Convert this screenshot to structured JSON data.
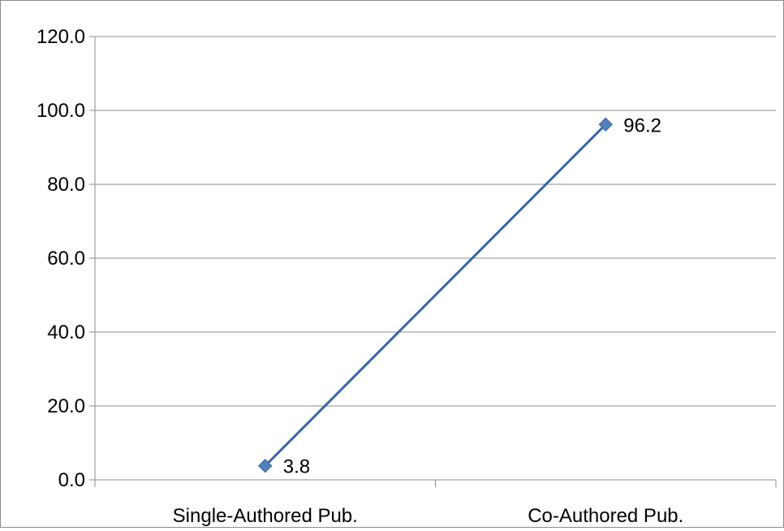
{
  "chart_data": {
    "type": "line",
    "title": "",
    "xlabel": "",
    "ylabel": "",
    "categories": [
      "Single-Authored Pub.",
      "Co-Authored Pub."
    ],
    "series": [
      {
        "values": [
          3.8,
          96.2
        ],
        "data_labels": [
          "3.8",
          "96.2"
        ],
        "color": "#3B64A6",
        "marker": "diamond",
        "marker_color": "#4F81BD"
      }
    ],
    "ylim": [
      0,
      120
    ],
    "yticks": [
      0,
      20,
      40,
      60,
      80,
      100,
      120
    ],
    "ytick_labels": [
      "0.0",
      "20.0",
      "40.0",
      "60.0",
      "80.0",
      "100.0",
      "120.0"
    ],
    "grid": true,
    "grid_color": "#8c8c8c",
    "legend": "none"
  }
}
